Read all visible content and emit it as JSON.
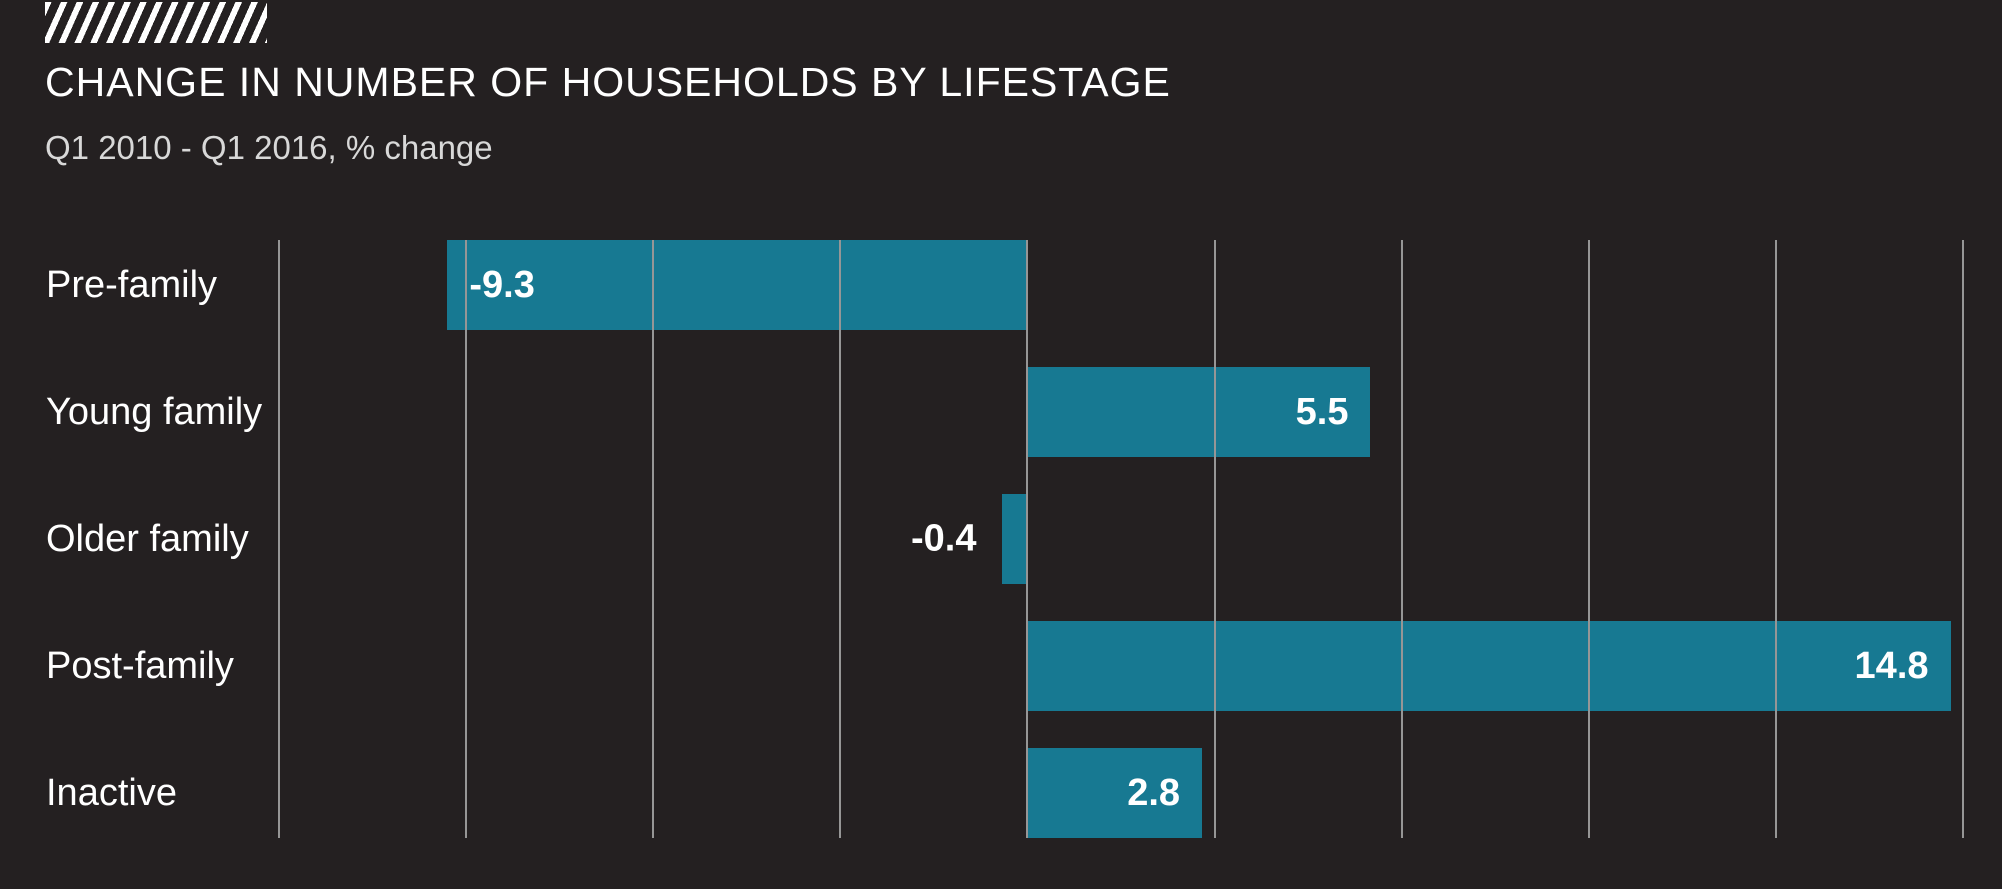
{
  "page": {
    "background": "#242021",
    "logo_icon": "hatched-stripes-logo"
  },
  "chart_data": {
    "type": "bar",
    "orientation": "horizontal",
    "title": "CHANGE IN NUMBER OF HOUSEHOLDS BY LIFESTAGE",
    "subtitle": "Q1 2010 - Q1 2016, % change",
    "categories": [
      "Pre-family",
      "Young family",
      "Older family",
      "Post-family",
      "Inactive"
    ],
    "values": [
      -9.3,
      5.5,
      -0.4,
      14.8,
      2.8
    ],
    "value_labels": [
      "-9.3",
      "5.5",
      "-0.4",
      "14.8",
      "2.8"
    ],
    "xlim": [
      -12,
      15
    ],
    "gridline_step": 3,
    "grid": true,
    "legend": false,
    "axis_tick_labels": [],
    "colors": {
      "background": "#242021",
      "bar": "#177992",
      "gridline": "#969696",
      "category_label": "#ffffff",
      "value_label": "#ffffff",
      "title": "#ffffff",
      "subtitle": "#d8d8d8",
      "logo_stripes": "#ffffff"
    }
  }
}
